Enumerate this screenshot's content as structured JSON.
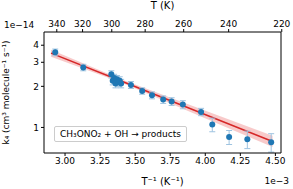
{
  "chart_data": {
    "type": "scatter",
    "x_label": "T⁻¹ (K⁻¹)",
    "y_label": "k₄ (cm³ molecule⁻¹ s⁻¹)",
    "x2_label": "T (K)",
    "annotations": [
      "1e−14",
      "1e−3"
    ],
    "log": "y",
    "grid": false,
    "legend": "lower left",
    "xlim": [
      0.00285,
      0.00454
    ],
    "xticks": [
      {
        "value": 0.003,
        "label": "3.00"
      },
      {
        "value": 0.00325,
        "label": "3.25"
      },
      {
        "value": 0.0035,
        "label": "3.50"
      },
      {
        "value": 0.00375,
        "label": "3.75"
      },
      {
        "value": 0.004,
        "label": "4.00"
      },
      {
        "value": 0.00425,
        "label": "4.25"
      },
      {
        "value": 0.0045,
        "label": "4.50"
      }
    ],
    "x2ticks": [
      340,
      320,
      300,
      280,
      260,
      240,
      220
    ],
    "ylim": [
      6.5e-15,
      5e-14
    ],
    "yticks": [
      {
        "value": 1e-14,
        "label": "1"
      },
      {
        "value": 2e-14,
        "label": "2"
      },
      {
        "value": 3e-14,
        "label": "3"
      },
      {
        "value": 4e-14,
        "label": "4"
      }
    ],
    "series": [
      {
        "name": "CH₃ONO₂ + OH → products",
        "type": "scatter",
        "color": "#1f77b4",
        "marker": "circle",
        "x": [
          0.00293,
          0.00313,
          0.00333,
          0.00334,
          0.00335,
          0.00336,
          0.00337,
          0.00338,
          0.00339,
          0.0034,
          0.00347,
          0.00355,
          0.00362,
          0.0037,
          0.00376,
          0.00384,
          0.00397,
          0.00405,
          0.00417,
          0.0043,
          0.00447
        ],
        "values": [
          3.55e-14,
          2.75e-14,
          2.45e-14,
          2.2e-14,
          2.3e-14,
          2.1e-14,
          2.25e-14,
          2.15e-14,
          2.2e-14,
          2.1e-14,
          2.05e-14,
          1.85e-14,
          1.72e-14,
          1.6e-14,
          1.55e-14,
          1.47e-14,
          1.3e-14,
          1.05e-14,
          8.5e-15,
          8.2e-15,
          7.8e-15
        ],
        "errors": [
          2e-15,
          1.5e-15,
          1.5e-15,
          1.5e-15,
          1.5e-15,
          1.5e-15,
          1.5e-15,
          1.5e-15,
          1.5e-15,
          1.5e-15,
          1.2e-15,
          1e-15,
          1e-15,
          1e-15,
          1e-15,
          1e-15,
          8e-16,
          1.2e-15,
          1e-15,
          1.2e-15,
          1.2e-15
        ]
      },
      {
        "type": "line",
        "color": "#d62728",
        "line_style": "solid",
        "x": [
          0.0029,
          0.0034,
          0.00448
        ],
        "values": [
          3.5e-14,
          2.19e-14,
          7.9e-15
        ],
        "band_lower": [
          3.3e-14,
          2.13e-14,
          7.2e-15
        ],
        "band_upper": [
          3.7e-14,
          2.25e-14,
          8.7e-15
        ]
      }
    ]
  }
}
